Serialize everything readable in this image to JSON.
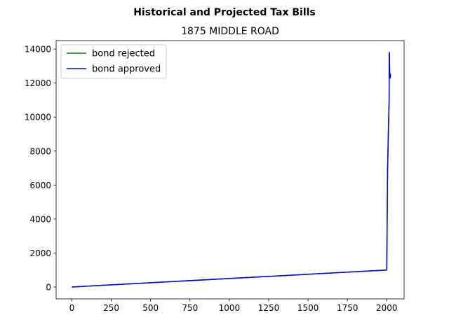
{
  "chart_data": {
    "type": "line",
    "suptitle": "Historical and Projected Tax Bills",
    "title": "1875 MIDDLE ROAD",
    "xlabel": "",
    "ylabel": "",
    "xlim": [
      -100,
      2110
    ],
    "ylim": [
      -700,
      14500
    ],
    "xticks": [
      0,
      250,
      500,
      750,
      1000,
      1250,
      1500,
      1750,
      2000
    ],
    "yticks": [
      0,
      2000,
      4000,
      6000,
      8000,
      10000,
      12000,
      14000
    ],
    "legend_position": "upper left",
    "series": [
      {
        "name": "bond rejected",
        "color": "#008000",
        "x": [
          0,
          2000,
          2005,
          2010,
          2015,
          2016,
          2017,
          2018,
          2019,
          2020,
          2021,
          2022,
          2023,
          2024
        ],
        "y": [
          0,
          1000,
          6800,
          9100,
          11000,
          13800,
          13700,
          12800,
          12300,
          12600,
          12400,
          12300,
          12500,
          12400
        ]
      },
      {
        "name": "bond approved",
        "color": "#0000ff",
        "x": [
          0,
          2000,
          2005,
          2010,
          2015,
          2016,
          2017,
          2018,
          2019,
          2020,
          2021,
          2022,
          2023,
          2024
        ],
        "y": [
          0,
          1000,
          6800,
          9100,
          11000,
          13800,
          13700,
          12800,
          12300,
          12600,
          12400,
          12300,
          12500,
          12400
        ]
      }
    ]
  }
}
